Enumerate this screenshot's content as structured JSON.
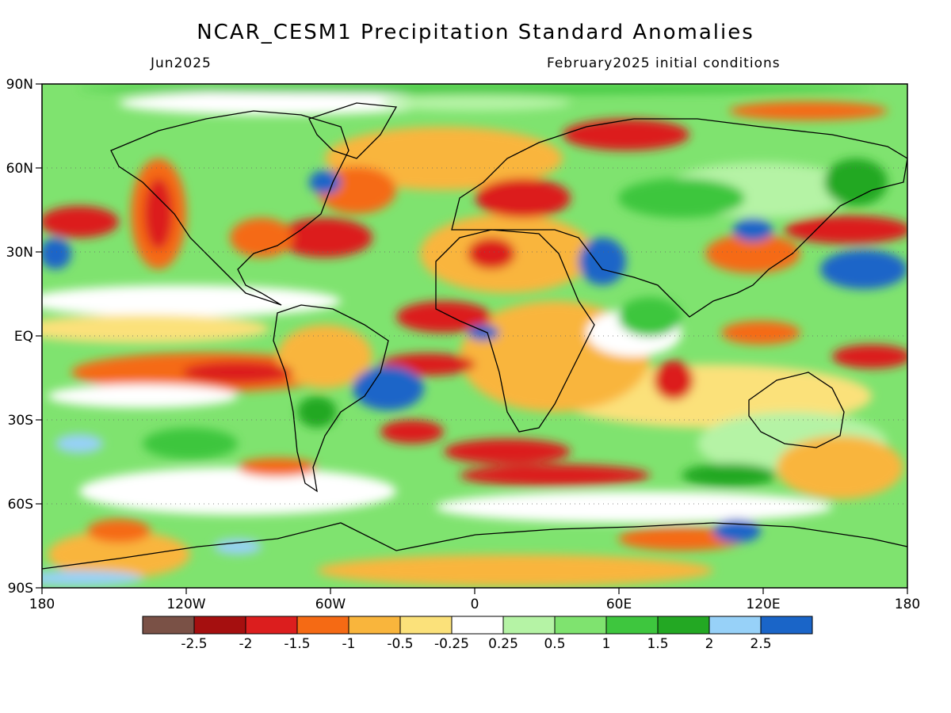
{
  "title": "NCAR_CESM1 Precipitation Standard Anomalies",
  "subtitle_left": "Jun2025",
  "subtitle_right": "February2025 initial conditions",
  "map": {
    "lon_ticks": [
      "180",
      "120W",
      "60W",
      "0",
      "60E",
      "120E",
      "180"
    ],
    "lat_ticks": [
      "90N",
      "60N",
      "30N",
      "EQ",
      "30S",
      "60S",
      "90S"
    ],
    "lon_range": [
      -180,
      180
    ],
    "lat_range": [
      -90,
      90
    ],
    "projection": "equirectangular",
    "gridlines": "dotted at 60N, 30N, EQ, 30S, 60S"
  },
  "colorbar": {
    "colors": [
      "#7a5146",
      "#a50f0f",
      "#dc1e1e",
      "#f56a14",
      "#f9b53c",
      "#fbe17a",
      "#ffffff",
      "#b5f3a5",
      "#7fe36f",
      "#3ec63e",
      "#23a823",
      "#97d1f8",
      "#1a65c8"
    ],
    "labels": [
      "-2.5",
      "-2",
      "-1.5",
      "-1",
      "-0.5",
      "-0.25",
      "0.25",
      "0.5",
      "1",
      "1.5",
      "2",
      "2.5"
    ]
  },
  "palette": {
    "dry_strong": "#a50f0f",
    "dry": "#f56a14",
    "wet": "#3ec63e",
    "wet_strong": "#1a65c8",
    "coast": "#000000"
  }
}
